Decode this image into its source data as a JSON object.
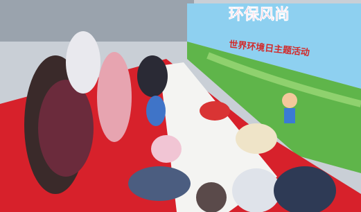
{
  "banner": {
    "headline": "环保风尚",
    "subtitle": "世界环境日主题活动"
  }
}
